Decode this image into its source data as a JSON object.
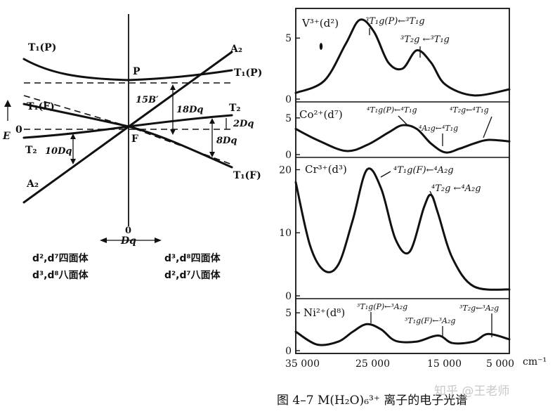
{
  "left_diagram": {
    "labels": {
      "t1p_top_left": "T₁(P)",
      "t1p_right": "T₁(P)",
      "p": "P",
      "a2_top_right": "A₂",
      "t1f_left": "T₁(F)",
      "b15": "15B′",
      "dq18": "18Dq",
      "t2_right": "T₂",
      "dq2": "2Dq",
      "e_axis": "E",
      "zero_left": "0",
      "f": "F",
      "dq8": "8Dq",
      "t2_left": "T₂",
      "dq10": "10Dq",
      "a2_bottom_left": "A₂",
      "t1f_right": "T₁(F)",
      "zero_bottom": "0",
      "dq_axis": "Dq"
    },
    "captions": {
      "left_line1": "d²,d⁷四面体",
      "left_line2": "d³,d⁸八面体",
      "right_line1": "d³,d⁸四面体",
      "right_line2": "d²,d⁷八面体"
    }
  },
  "spectra": {
    "panels": [
      {
        "ion": "V³⁺(d²)",
        "bands": [
          {
            "label": "³T₁g(P)←³T₁g"
          },
          {
            "label": "³T₂g ←³T₁g"
          }
        ],
        "ticks": [
          "5",
          "0"
        ],
        "tick_values": [
          5,
          0
        ],
        "ymax": 7.2
      },
      {
        "ion": "Co²⁺(d⁷)",
        "bands": [
          {
            "label": "⁴T₁g(P)←⁴T₁g"
          },
          {
            "label": "⁴A₂g←⁴T₁g"
          },
          {
            "label": "⁴T₂g←⁴T₁g"
          }
        ],
        "ticks": [
          "5",
          "0"
        ],
        "tick_values": [
          5,
          0
        ],
        "ymax": 6.8
      },
      {
        "ion": "Cr³⁺(d³)",
        "bands": [
          {
            "label": "⁴T₁g(F)←⁴A₂g"
          },
          {
            "label": "⁴T₂g ←⁴A₂g"
          }
        ],
        "ticks": [
          "20",
          "10",
          "0"
        ],
        "tick_values": [
          20,
          10,
          0
        ],
        "ymax": 21.5
      },
      {
        "ion": "Ni²⁺(d⁸)",
        "bands": [
          {
            "label": "³T₁g(P)←³A₂g"
          },
          {
            "label": "³T₁g(F)←³A₂g"
          },
          {
            "label": "³T₂g←³A₂g"
          }
        ],
        "ticks": [
          "5",
          "0"
        ],
        "tick_values": [
          5,
          0
        ],
        "ymax": 6.5
      }
    ],
    "x_ticks": [
      "35 000",
      "25 000",
      "15 000",
      "5 000"
    ],
    "x_unit": "cm⁻¹",
    "caption": "图 4–7   M(H₂O)₆³⁺ 离子的电子光谱",
    "watermark": "知乎 @王老师"
  },
  "chart_data": {
    "type": "line",
    "xlabel": "",
    "ylabel": "",
    "x_unit": "cm⁻¹",
    "xlim": [
      35000,
      5000
    ],
    "series": [
      {
        "ion": "V3+",
        "x": [
          35000,
          31000,
          28000,
          26000,
          24000,
          22000,
          20000,
          18000,
          16000,
          14000,
          10000,
          5000
        ],
        "y": [
          0.5,
          1.5,
          4.5,
          6.5,
          5.5,
          3.0,
          2.5,
          4.0,
          3.0,
          1.2,
          0.3,
          0.8
        ]
      },
      {
        "ion": "Co2+",
        "x": [
          35000,
          32000,
          28000,
          25000,
          22000,
          20000,
          18000,
          16000,
          14000,
          12000,
          10000,
          8000,
          5000
        ],
        "y": [
          3.5,
          2.0,
          0.5,
          1.3,
          3.0,
          4.0,
          3.5,
          1.5,
          0.3,
          0.8,
          1.5,
          2.0,
          1.8
        ]
      },
      {
        "ion": "Cr3+",
        "x": [
          35000,
          33000,
          31000,
          29000,
          27000,
          25000,
          23000,
          21000,
          19000,
          17000,
          16000,
          15000,
          13000,
          10000,
          5000
        ],
        "y": [
          18,
          8,
          4,
          5,
          12,
          20,
          17,
          9,
          7,
          14,
          16,
          13,
          6,
          1.5,
          1
        ]
      },
      {
        "ion": "Ni2+",
        "x": [
          35000,
          32000,
          29000,
          27000,
          25000,
          23000,
          21000,
          18000,
          15000,
          13000,
          10000,
          8000,
          5000
        ],
        "y": [
          2.5,
          0.8,
          1.2,
          2.5,
          3.5,
          2.8,
          1.3,
          1.2,
          2.0,
          1.0,
          1.2,
          2.2,
          1.5
        ]
      }
    ]
  }
}
